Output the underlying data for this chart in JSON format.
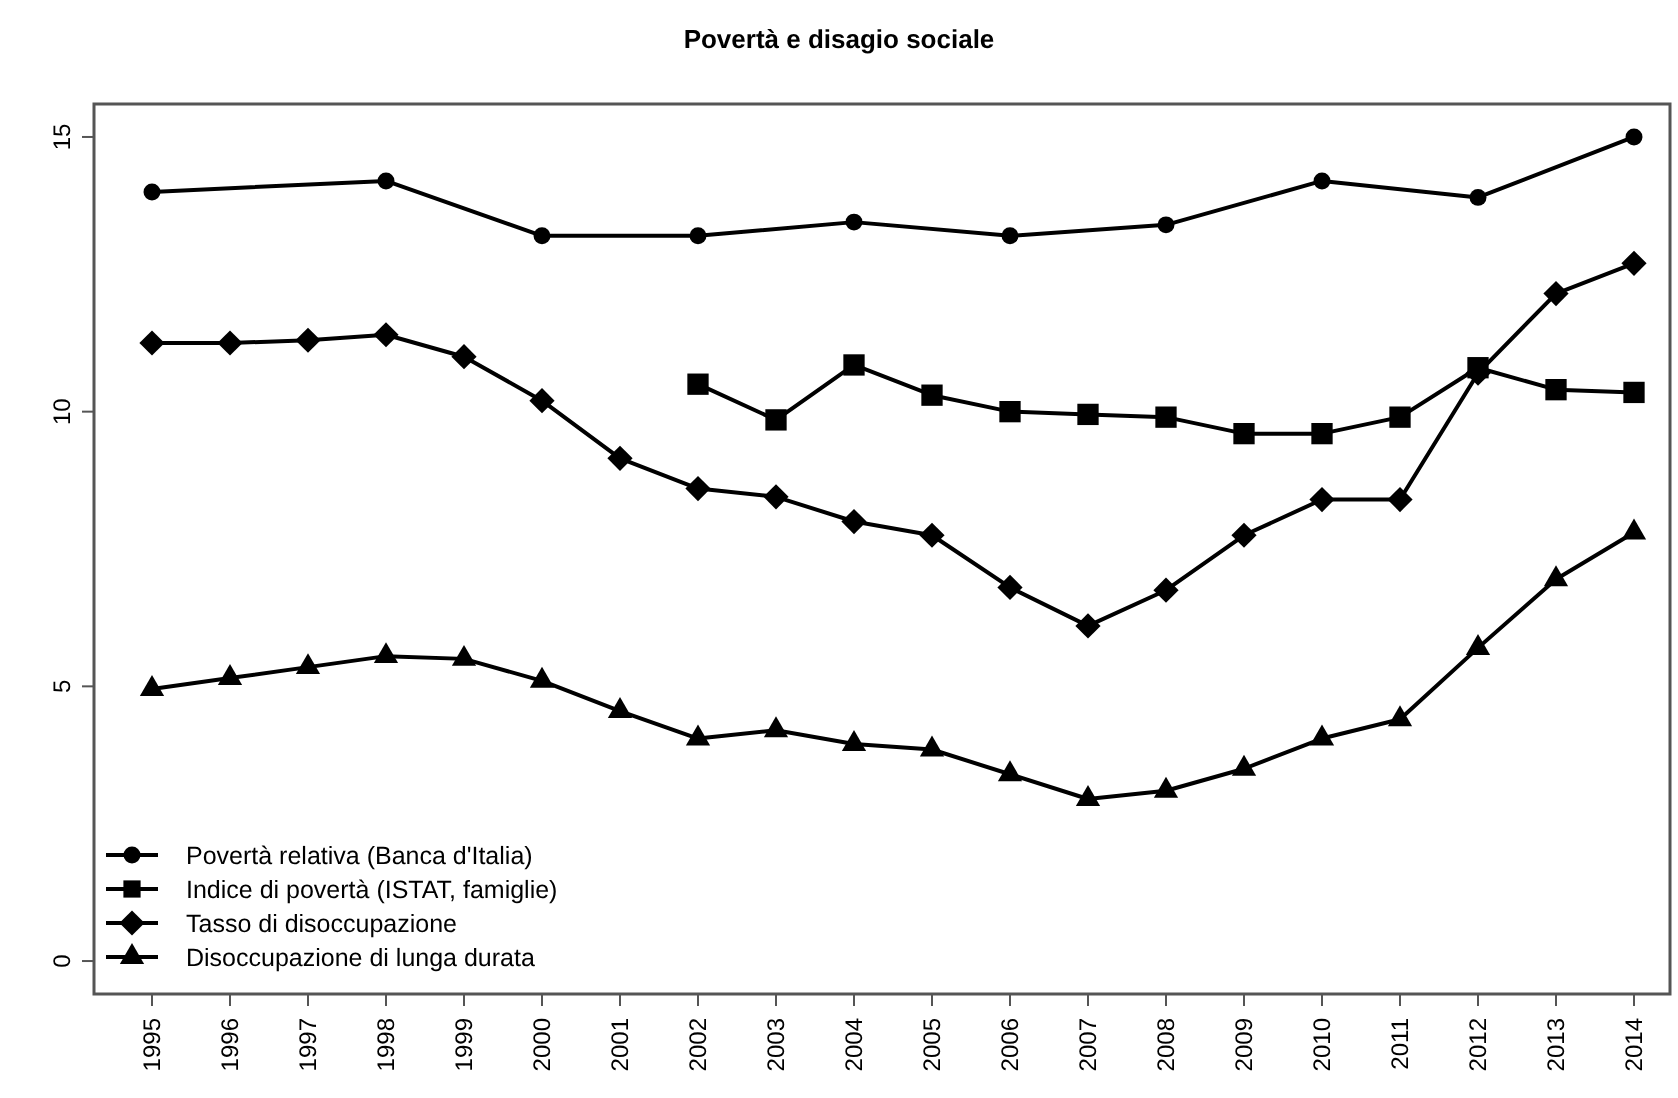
{
  "chart_data": {
    "type": "line",
    "title": "Povertà e disagio sociale",
    "categories": [
      "1995",
      "1996",
      "1997",
      "1998",
      "1999",
      "2000",
      "2001",
      "2002",
      "2003",
      "2004",
      "2005",
      "2006",
      "2007",
      "2008",
      "2009",
      "2010",
      "2011",
      "2012",
      "2013",
      "2014"
    ],
    "series": [
      {
        "name": "Povertà relativa (Banca d'Italia)",
        "color": "#000000",
        "marker": "circle",
        "values": [
          14.0,
          null,
          null,
          14.2,
          null,
          13.2,
          null,
          13.2,
          null,
          13.45,
          null,
          13.2,
          null,
          13.4,
          null,
          14.2,
          null,
          13.9,
          null,
          15.0
        ]
      },
      {
        "name": "Indice di povertà (ISTAT, famiglie)",
        "color": "#000000",
        "marker": "square",
        "values": [
          null,
          null,
          null,
          null,
          null,
          null,
          null,
          10.5,
          9.85,
          10.85,
          10.3,
          10.0,
          9.95,
          9.9,
          9.6,
          9.6,
          9.9,
          10.8,
          10.4,
          10.35
        ]
      },
      {
        "name": "Tasso di disoccupazione",
        "color": "#000000",
        "marker": "diamond",
        "values": [
          11.25,
          11.25,
          11.3,
          11.4,
          11.0,
          10.2,
          9.15,
          8.6,
          8.45,
          8.0,
          7.75,
          6.8,
          6.1,
          6.75,
          7.75,
          8.4,
          8.4,
          10.7,
          12.15,
          12.7
        ]
      },
      {
        "name": "Disoccupazione di lunga durata",
        "color": "#000000",
        "marker": "triangle",
        "values": [
          4.95,
          5.15,
          5.35,
          5.55,
          5.5,
          5.1,
          4.55,
          4.05,
          4.2,
          3.95,
          3.85,
          3.4,
          2.95,
          3.1,
          3.5,
          4.05,
          4.4,
          5.7,
          6.95,
          7.8
        ]
      }
    ],
    "ylim": [
      -0.6,
      15.6
    ],
    "yticks": [
      0,
      5,
      10,
      15
    ],
    "grid": false,
    "legend": "bottom left",
    "line_style": "solid"
  }
}
